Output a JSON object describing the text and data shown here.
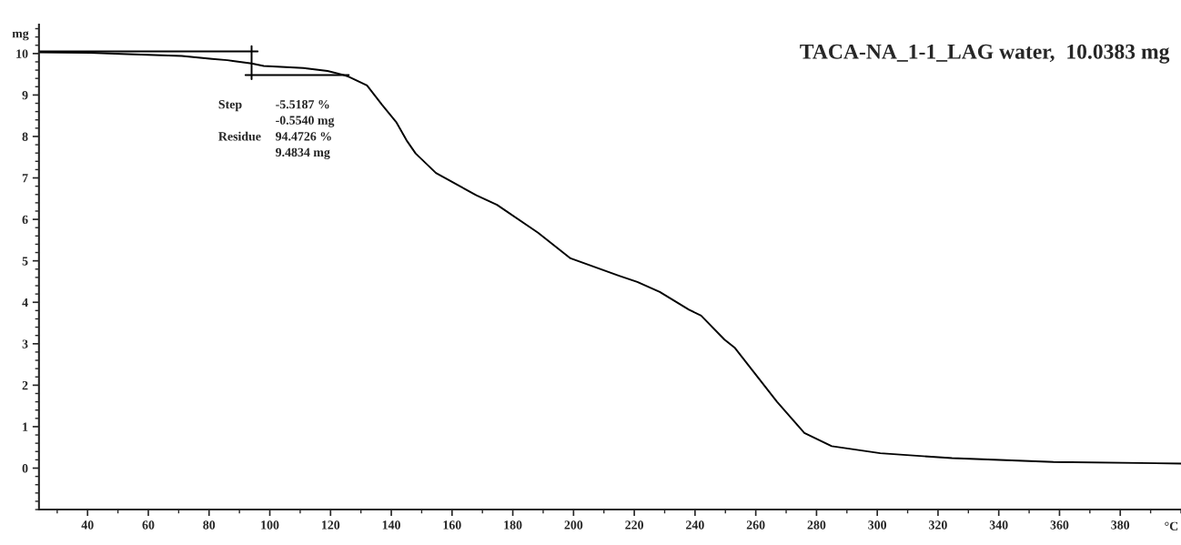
{
  "chart_data": {
    "type": "line",
    "title": "TACA-NA_1-1_LAG water,  10.0383 mg",
    "xlabel": "°C",
    "ylabel": "mg",
    "xlim": [
      24,
      400
    ],
    "ylim": [
      -1,
      10.7
    ],
    "xticks": [
      40,
      60,
      80,
      100,
      120,
      140,
      160,
      180,
      200,
      220,
      240,
      260,
      280,
      300,
      320,
      340,
      360,
      380
    ],
    "yticks": [
      0,
      1,
      2,
      3,
      4,
      5,
      6,
      7,
      8,
      9,
      10
    ],
    "grid": false,
    "legend": false,
    "marker": "none",
    "line_style": "solid",
    "annotations": [
      "Step",
      "-5.5187 %",
      "-0.5540 mg",
      "Residue",
      "94.4726 %",
      "9.4834 mg"
    ],
    "series": [
      {
        "color": "#000000",
        "x": [
          24,
          41,
          51,
          71,
          81,
          86,
          94,
          98,
          111,
          119,
          124,
          126,
          132,
          137,
          141.6,
          145,
          148,
          154.7,
          168,
          174.8,
          188.3,
          199,
          215,
          221,
          228.4,
          238,
          242,
          249.7,
          253,
          267,
          276,
          285,
          301,
          324.6,
          358,
          400
        ],
        "values": [
          10.03,
          10.02,
          9.99,
          9.94,
          9.87,
          9.84,
          9.76,
          9.7,
          9.65,
          9.58,
          9.49,
          9.44,
          9.23,
          8.76,
          8.35,
          7.91,
          7.59,
          7.12,
          6.58,
          6.35,
          5.68,
          5.06,
          4.64,
          4.49,
          4.25,
          3.82,
          3.68,
          3.1,
          2.91,
          1.6,
          0.85,
          0.53,
          0.36,
          0.24,
          0.15,
          0.11
        ]
      },
      {
        "color": "#000000",
        "x": [
          24,
          96
        ],
        "values": [
          10.05,
          10.05
        ]
      },
      {
        "color": "#000000",
        "x": [
          94,
          94
        ],
        "values": [
          9.38,
          10.18
        ]
      },
      {
        "color": "#000000",
        "x": [
          92,
          126
        ],
        "values": [
          9.48,
          9.48
        ]
      }
    ]
  }
}
